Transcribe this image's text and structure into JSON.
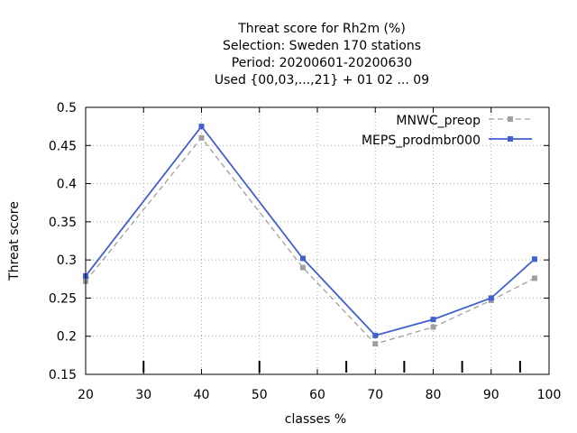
{
  "chart_data": {
    "type": "line",
    "title_lines": [
      "Threat score  for Rh2m (%)",
      "Selection: Sweden    170 stations",
      "Period: 20200601-20200630",
      "Used {00,03,...,21} + 01 02 ... 09"
    ],
    "xlabel": "classes %",
    "ylabel": "Threat score",
    "xlim": [
      20,
      100
    ],
    "ylim": [
      0.15,
      0.5
    ],
    "xticks": [
      20,
      30,
      40,
      50,
      60,
      70,
      80,
      90,
      100
    ],
    "yticks": [
      0.15,
      0.2,
      0.25,
      0.3,
      0.35,
      0.4,
      0.45,
      0.5
    ],
    "grid": true,
    "legend_position": "top-right",
    "class_markers": [
      30,
      50,
      65,
      75,
      85,
      95
    ],
    "series": [
      {
        "name": "MNWC_preop",
        "color": "#a0a0a0",
        "dashed": true,
        "x": [
          20,
          40,
          57.5,
          70,
          80,
          90,
          97.5
        ],
        "values": [
          0.272,
          0.46,
          0.29,
          0.19,
          0.212,
          0.247,
          0.276
        ]
      },
      {
        "name": "MEPS_prodmbr000",
        "color": "#4060d0",
        "dashed": false,
        "x": [
          20,
          40,
          57.5,
          70,
          80,
          90,
          97.5
        ],
        "values": [
          0.279,
          0.475,
          0.302,
          0.201,
          0.222,
          0.25,
          0.301
        ]
      }
    ]
  }
}
